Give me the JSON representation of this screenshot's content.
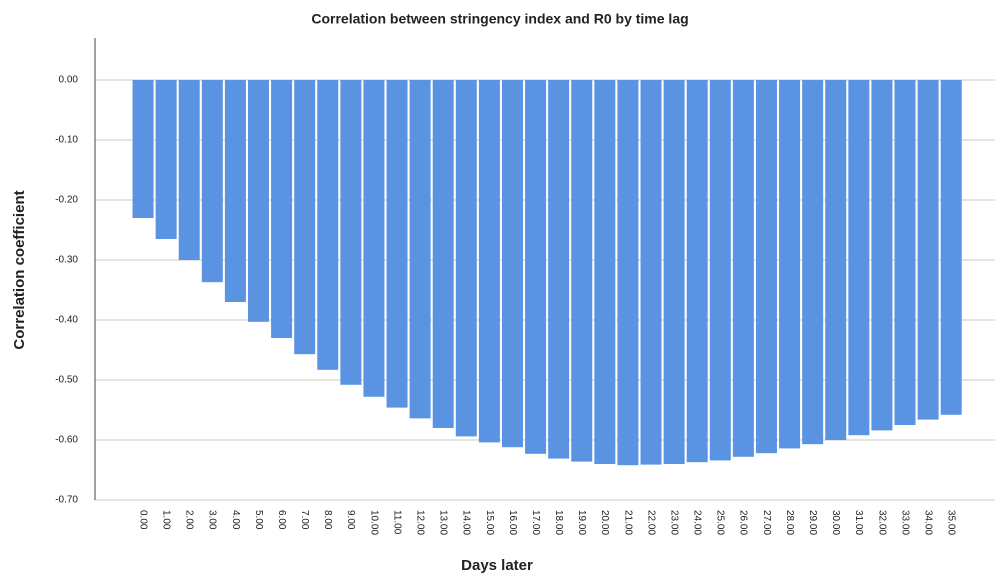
{
  "chart_data": {
    "type": "bar",
    "title": "Correlation between stringency index and R0 by time lag",
    "x_label": "Days later",
    "y_label": "Correlation coefficient",
    "categories": [
      "0.00",
      "1.00",
      "2.00",
      "3.00",
      "4.00",
      "5.00",
      "6.00",
      "7.00",
      "8.00",
      "9.00",
      "10.00",
      "11.00",
      "12.00",
      "13.00",
      "14.00",
      "15.00",
      "16.00",
      "17.00",
      "18.00",
      "19.00",
      "20.00",
      "21.00",
      "22.00",
      "23.00",
      "24.00",
      "25.00",
      "26.00",
      "27.00",
      "28.00",
      "29.00",
      "30.00",
      "31.00",
      "32.00",
      "33.00",
      "34.00",
      "35.00"
    ],
    "values": [
      -0.23,
      -0.265,
      -0.3,
      -0.337,
      -0.37,
      -0.403,
      -0.43,
      -0.457,
      -0.483,
      -0.508,
      -0.528,
      -0.546,
      -0.564,
      -0.58,
      -0.594,
      -0.604,
      -0.612,
      -0.623,
      -0.631,
      -0.636,
      -0.64,
      -0.642,
      -0.641,
      -0.64,
      -0.637,
      -0.634,
      -0.628,
      -0.622,
      -0.614,
      -0.607,
      -0.6,
      -0.592,
      -0.584,
      -0.575,
      -0.566,
      -0.558
    ],
    "color": "#5b93e3",
    "ylim": [
      -0.7,
      0.07
    ],
    "yticks": [
      {
        "value": 0,
        "label": "0.00"
      },
      {
        "value": -0.1,
        "label": "-0.10"
      },
      {
        "value": -0.2,
        "label": "-0.20"
      },
      {
        "value": -0.3,
        "label": "-0.30"
      },
      {
        "value": -0.4,
        "label": "-0.40"
      },
      {
        "value": -0.5,
        "label": "-0.50"
      },
      {
        "value": -0.6,
        "label": "-0.60"
      },
      {
        "value": -0.7,
        "label": "-0.70"
      }
    ],
    "grid": true
  }
}
